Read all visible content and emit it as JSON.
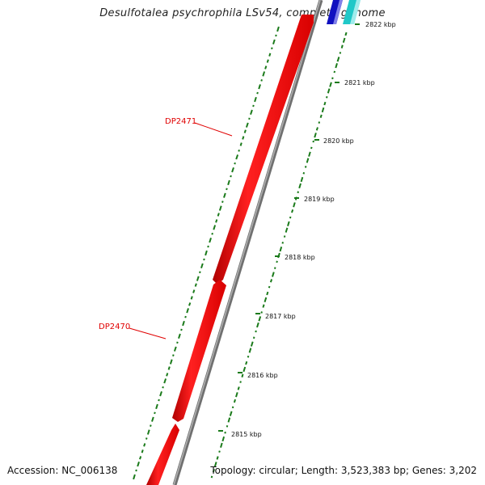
{
  "title": "Desulfotalea psychrophila LSv54, complete genome",
  "footer": {
    "accession": "Accession: NC_006138",
    "stats": "Topology: circular; Length: 3,523,383 bp; Genes: 3,202"
  },
  "genes": [
    {
      "id": "DP2471",
      "color": "#ee0000"
    },
    {
      "id": "DP2470",
      "color": "#ee0000"
    }
  ],
  "ticks": [
    "2822 kbp",
    "2821 kbp",
    "2820 kbp",
    "2819 kbp",
    "2818 kbp",
    "2817 kbp",
    "2816 kbp",
    "2815 kbp"
  ],
  "colors": {
    "gene": "#ee0000",
    "backbone": "#888888",
    "gc_track": "#1a7a1a",
    "blue_feature": "#1010c0",
    "cyan_feature": "#20c8c8"
  }
}
